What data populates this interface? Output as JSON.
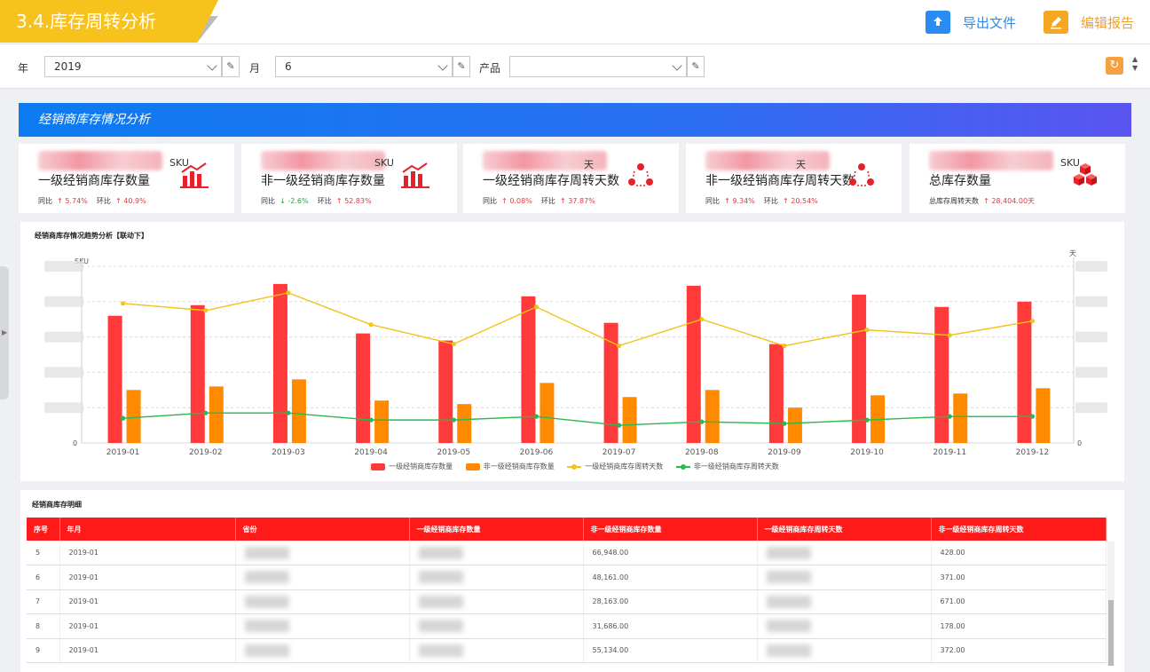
{
  "header": {
    "title": "3.4.库存周转分析",
    "export_label": "导出文件",
    "edit_label": "编辑报告"
  },
  "filters": {
    "year_label": "年",
    "year_value": "2019",
    "month_label": "月",
    "month_value": "6",
    "product_label": "产品",
    "product_value": ""
  },
  "banner": {
    "title": "经销商库存情况分析"
  },
  "cards": [
    {
      "unit": "SKU",
      "title": "一级经销商库存数量",
      "yoy_label": "同比",
      "yoy": "5.74%",
      "yoy_dir": "up",
      "mom_label": "环比",
      "mom": "40.9%",
      "mom_dir": "up",
      "icon": "bar-chart-icon"
    },
    {
      "unit": "SKU",
      "title": "非一级经销商库存数量",
      "yoy_label": "同比",
      "yoy": "-2.6%",
      "yoy_dir": "down",
      "mom_label": "环比",
      "mom": "52.83%",
      "mom_dir": "up",
      "icon": "bar-chart-icon"
    },
    {
      "unit": "天",
      "title": "一级经销商库存周转天数",
      "yoy_label": "同比",
      "yoy": "0.08%",
      "yoy_dir": "up",
      "mom_label": "环比",
      "mom": "37.87%",
      "mom_dir": "up",
      "icon": "cycle-icon"
    },
    {
      "unit": "天",
      "title": "非一级经销商库存周转天数",
      "yoy_label": "同比",
      "yoy": "9.34%",
      "yoy_dir": "up",
      "mom_label": "环比",
      "mom": "20.54%",
      "mom_dir": "up",
      "icon": "cycle-icon"
    },
    {
      "unit": "SKU",
      "title": "总库存数量",
      "yoy_label": "总库存周转天数",
      "yoy": "28,404.00天",
      "yoy_dir": "up",
      "mom_label": "",
      "mom": "",
      "mom_dir": "",
      "icon": "cubes-icon"
    }
  ],
  "chart_panel": {
    "title": "经销商库存情况趋势分析【联动下】"
  },
  "chart_data": {
    "type": "bar",
    "categories": [
      "2019-01",
      "2019-02",
      "2019-03",
      "2019-04",
      "2019-05",
      "2019-06",
      "2019-07",
      "2019-08",
      "2019-09",
      "2019-10",
      "2019-11",
      "2019-12"
    ],
    "ylabel_left": "SKU",
    "ylabel_right": "天",
    "y_left_zero": "0",
    "y_right_zero": "0",
    "series": [
      {
        "name": "一级经销商库存数量",
        "kind": "bar",
        "axis": "left",
        "color": "#ff3a3a",
        "values": [
          0.72,
          0.78,
          0.9,
          0.62,
          0.58,
          0.83,
          0.68,
          0.89,
          0.56,
          0.84,
          0.77,
          0.8
        ]
      },
      {
        "name": "非一级经销商库存数量",
        "kind": "bar",
        "axis": "left",
        "color": "#ff8a00",
        "values": [
          0.3,
          0.32,
          0.36,
          0.24,
          0.22,
          0.34,
          0.26,
          0.3,
          0.2,
          0.27,
          0.28,
          0.31
        ]
      },
      {
        "name": "一级经销商库存周转天数",
        "kind": "line",
        "axis": "right",
        "color": "#f0c419",
        "values": [
          0.79,
          0.75,
          0.85,
          0.67,
          0.56,
          0.77,
          0.55,
          0.7,
          0.55,
          0.64,
          0.61,
          0.69
        ]
      },
      {
        "name": "非一级经销商库存周转天数",
        "kind": "line",
        "axis": "right",
        "color": "#2db84d",
        "values": [
          0.14,
          0.17,
          0.17,
          0.13,
          0.13,
          0.15,
          0.1,
          0.12,
          0.11,
          0.13,
          0.15,
          0.15
        ]
      }
    ]
  },
  "table_panel": {
    "title": "经销商库存明细"
  },
  "table": {
    "headers": [
      "序号",
      "年月",
      "省份",
      "一级经销商库存数量",
      "非一级经销商库存数量",
      "一级经销商库存周转天数",
      "非一级经销商库存周转天数"
    ],
    "rows": [
      {
        "idx": "5",
        "ym": "2019-01",
        "qty2": "66,948.00",
        "days2": "428.00"
      },
      {
        "idx": "6",
        "ym": "2019-01",
        "qty2": "48,161.00",
        "days2": "371.00"
      },
      {
        "idx": "7",
        "ym": "2019-01",
        "qty2": "28,163.00",
        "days2": "671.00"
      },
      {
        "idx": "8",
        "ym": "2019-01",
        "qty2": "31,686.00",
        "days2": "178.00"
      },
      {
        "idx": "9",
        "ym": "2019-01",
        "qty2": "55,134.00",
        "days2": "372.00"
      }
    ]
  }
}
